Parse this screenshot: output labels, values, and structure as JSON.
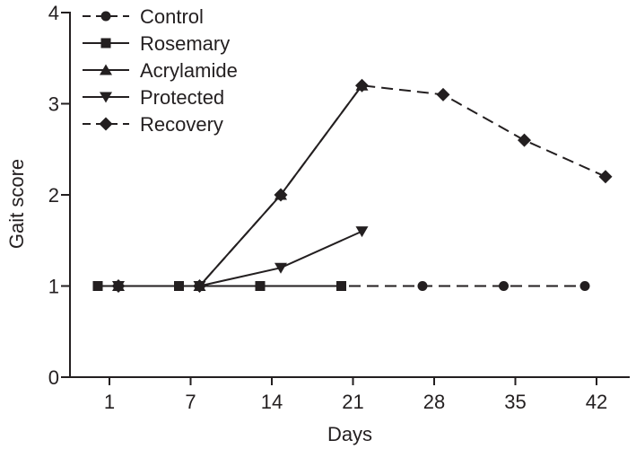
{
  "figure": {
    "background": "#ffffff",
    "ink_color": "#231f20"
  },
  "chart_data": {
    "type": "line",
    "title": "",
    "xlabel": "Days",
    "ylabel": "Gait score",
    "x_days": [
      1,
      7,
      14,
      21,
      28,
      35,
      42
    ],
    "x_tick_labels": [
      "1",
      "7",
      "14",
      "21",
      "28",
      "35",
      "42"
    ],
    "y_tick_labels": [
      "0",
      "1",
      "2",
      "3",
      "4"
    ],
    "y_ticks": [
      0,
      1,
      2,
      3,
      4
    ],
    "ylim": [
      0,
      4
    ],
    "grid": false,
    "legend_position": "top-left-inside",
    "series": [
      {
        "name": "Control",
        "marker": "circle",
        "line_style": "dashed",
        "jitter": "left",
        "z": 0,
        "x_days": [
          1,
          7,
          14,
          21,
          28,
          35,
          42
        ],
        "values": [
          1,
          1,
          1,
          1,
          1,
          1,
          1
        ]
      },
      {
        "name": "Rosemary",
        "marker": "square",
        "line_style": "solid",
        "jitter": "left",
        "z": 4,
        "x_days": [
          1,
          7,
          14,
          21
        ],
        "values": [
          1,
          1,
          1,
          1
        ]
      },
      {
        "name": "Acrylamide",
        "marker": "triangle-up",
        "line_style": "solid",
        "jitter": "right",
        "z": 3,
        "x_days": [
          1,
          7,
          14,
          21
        ],
        "values": [
          1,
          1,
          2,
          3.2
        ]
      },
      {
        "name": "Protected",
        "marker": "triangle-down",
        "line_style": "solid",
        "jitter": "right",
        "z": 2,
        "x_days": [
          1,
          7,
          14,
          21
        ],
        "values": [
          1,
          1,
          1.2,
          1.6
        ]
      },
      {
        "name": "Recovery",
        "marker": "diamond",
        "line_style": "dashed",
        "jitter": "right",
        "z": 1,
        "x_days": [
          1,
          7,
          14,
          21,
          28,
          35,
          42
        ],
        "values": [
          1,
          1,
          2,
          3.2,
          3.1,
          2.6,
          2.2
        ]
      }
    ]
  }
}
